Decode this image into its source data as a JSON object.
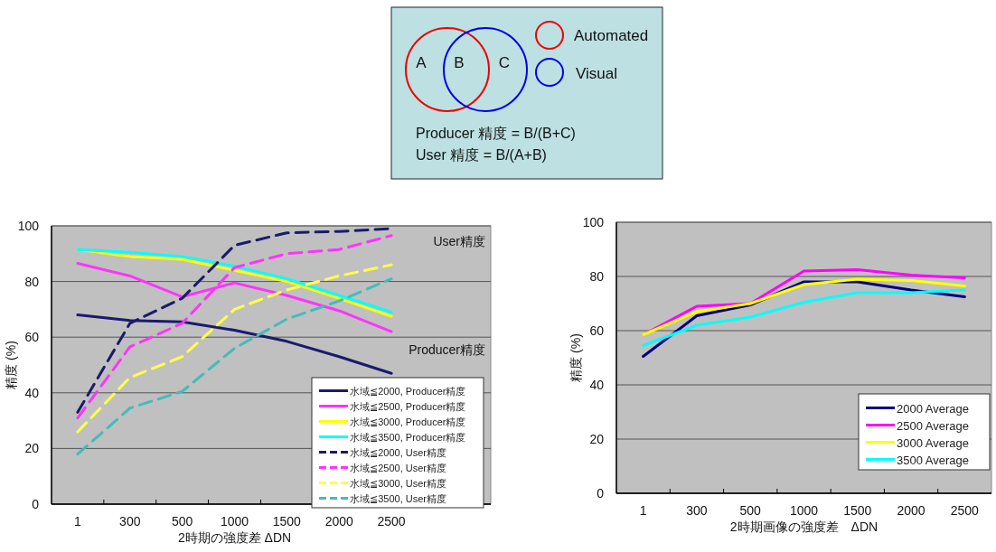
{
  "chart_data": [
    {
      "type": "other",
      "annotations": [
        "A",
        "B",
        "C",
        "Automated",
        "Visual",
        "Producer 精度 = B/(B+C)",
        "User 精度 = B/(A+B)"
      ]
    },
    {
      "type": "line",
      "xlabel": "2時期の強度差 ΔDN",
      "ylabel": "精度 (%)",
      "annotations": [
        "User精度",
        "Producer精度"
      ],
      "categories": [
        "1",
        "300",
        "500",
        "1000",
        "1500",
        "2000",
        "2500"
      ],
      "ylim": [
        0,
        100
      ],
      "yticks": [
        0,
        20,
        40,
        60,
        80,
        100
      ],
      "grid": "y",
      "legend": "bottom right",
      "series": [
        {
          "name": "水域≦2000, Producer精度",
          "color": "#1a1a6e",
          "line_style": "solid",
          "values": [
            68,
            66,
            65.5,
            62.5,
            58.5,
            53,
            47
          ]
        },
        {
          "name": "水域≦2500, Producer精度",
          "color": "#ff33ff",
          "line_style": "solid",
          "values": [
            86.5,
            82,
            74.5,
            79.5,
            75,
            69.5,
            62
          ]
        },
        {
          "name": "水域≦3000, Producer精度",
          "color": "#ffff00",
          "line_style": "solid",
          "values": [
            91.5,
            89,
            88,
            84,
            80,
            74,
            67.5
          ]
        },
        {
          "name": "水域≦3500, Producer精度",
          "color": "#00ffff",
          "line_style": "solid",
          "values": [
            91.5,
            90.5,
            89,
            85.5,
            81,
            75,
            69
          ]
        },
        {
          "name": "水域≦2000, User精度",
          "color": "#1a1a6e",
          "line_style": "dashed",
          "values": [
            33,
            65,
            74,
            93,
            97.5,
            98,
            99
          ]
        },
        {
          "name": "水域≦2500, User精度",
          "color": "#ff33ff",
          "line_style": "dashed",
          "values": [
            31,
            56.5,
            65,
            85,
            90,
            91.5,
            96.5
          ]
        },
        {
          "name": "水域≦3000, User精度",
          "color": "#ffff44",
          "line_style": "dashed",
          "values": [
            26,
            45.5,
            53,
            70,
            77,
            82,
            86
          ]
        },
        {
          "name": "水域≦3500, User精度",
          "color": "#44bbbb",
          "line_style": "dashed",
          "values": [
            18,
            34.5,
            40.5,
            56,
            66.5,
            73,
            81
          ]
        }
      ]
    },
    {
      "type": "line",
      "xlabel": "2時期画像の強度差　ΔDN",
      "ylabel": "精度 (%)",
      "categories": [
        "1",
        "300",
        "500",
        "1000",
        "1500",
        "2000",
        "2500"
      ],
      "ylim": [
        0,
        100
      ],
      "yticks": [
        0,
        20,
        40,
        60,
        80,
        100
      ],
      "grid": "y",
      "legend": "bottom right",
      "series": [
        {
          "name": "2000 Average",
          "color": "#000080",
          "values": [
            50.5,
            65.5,
            69.5,
            78,
            78,
            75,
            72.5
          ]
        },
        {
          "name": "2500 Average",
          "color": "#ff00ff",
          "values": [
            58.5,
            69,
            70,
            82,
            82.5,
            80.5,
            79.5
          ]
        },
        {
          "name": "3000 Average",
          "color": "#ffff00",
          "values": [
            58.5,
            67,
            70,
            77,
            79,
            78.5,
            76.5
          ]
        },
        {
          "name": "3500 Average",
          "color": "#00ffff",
          "values": [
            54.5,
            62,
            65,
            70.5,
            74,
            74,
            75
          ]
        }
      ]
    }
  ]
}
